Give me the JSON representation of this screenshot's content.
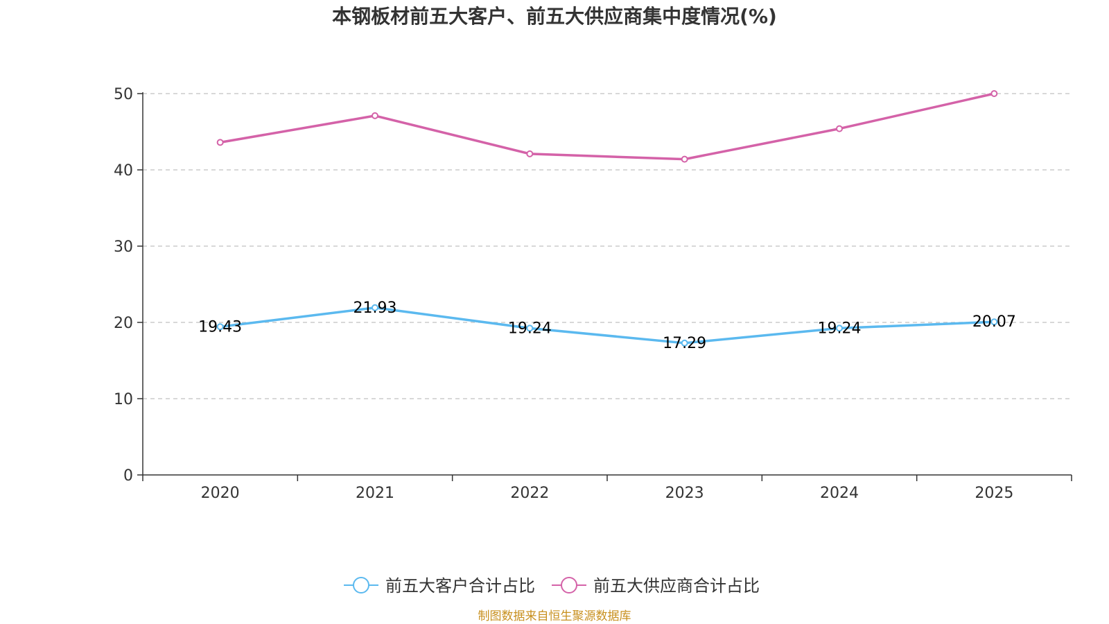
{
  "chart_data": {
    "type": "line",
    "title": "本钢板材前五大客户、前五大供应商集中度情况(%)",
    "categories": [
      "2020",
      "2021",
      "2022",
      "2023",
      "2024",
      "2025"
    ],
    "series": [
      {
        "name": "前五大客户合计占比",
        "color": "#5bb9ef",
        "values": [
          19.43,
          21.93,
          19.24,
          17.29,
          19.24,
          20.07
        ],
        "show_labels": true
      },
      {
        "name": "前五大供应商合计占比",
        "color": "#d462a8",
        "values": [
          43.6,
          47.1,
          42.1,
          41.4,
          45.4,
          50.0
        ],
        "show_labels": false
      }
    ],
    "ylim": [
      0,
      50
    ],
    "yticks": [
      0,
      10,
      20,
      30,
      40,
      50
    ],
    "grid": true,
    "legend": "bottom-center",
    "xlabel": "",
    "ylabel": ""
  },
  "source": "制图数据来自恒生聚源数据库"
}
